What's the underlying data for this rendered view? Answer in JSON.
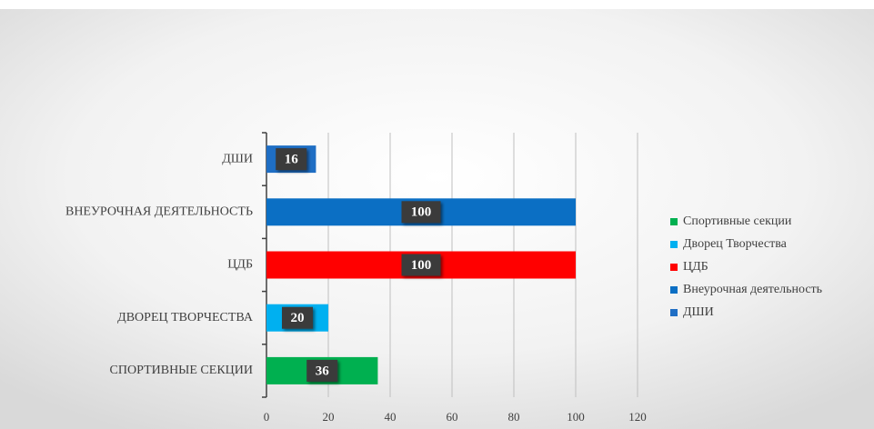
{
  "chart_data": {
    "type": "bar",
    "orientation": "horizontal",
    "categories": [
      "СПОРТИВНЫЕ СЕКЦИИ",
      "ДВОРЕЦ ТВОРЧЕСТВА",
      "ЦДБ",
      "ВНЕУРОЧНАЯ ДЕЯТЕЛЬНОСТЬ",
      "ДШИ"
    ],
    "series": [
      {
        "name": "Спортивные секции",
        "color": "#00b050",
        "values": [
          36,
          null,
          null,
          null,
          null
        ]
      },
      {
        "name": "Дворец Творчества",
        "color": "#00b0f0",
        "values": [
          null,
          20,
          null,
          null,
          null
        ]
      },
      {
        "name": "ЦДБ",
        "color": "#ff0000",
        "values": [
          null,
          null,
          100,
          null,
          null
        ]
      },
      {
        "name": "Внеурочная деятельность",
        "color": "#0b6fc4",
        "values": [
          null,
          null,
          null,
          100,
          null
        ]
      },
      {
        "name": "ДШИ",
        "color": "#1f6ec4",
        "values": [
          null,
          null,
          null,
          null,
          16
        ]
      }
    ],
    "xlim": [
      0,
      120
    ],
    "xticks": [
      0,
      20,
      40,
      60,
      80,
      100,
      120
    ],
    "grid": true,
    "legend": "right"
  }
}
